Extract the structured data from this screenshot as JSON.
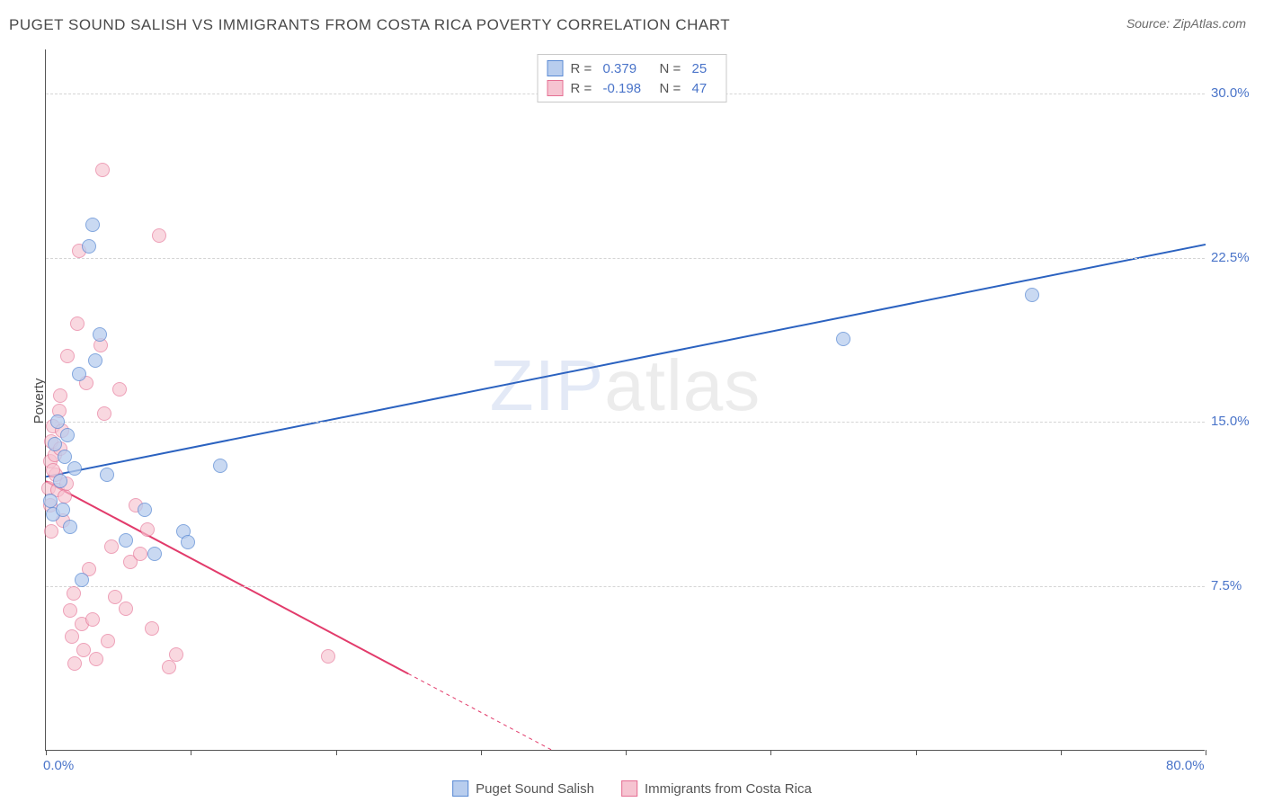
{
  "header": {
    "title": "PUGET SOUND SALISH VS IMMIGRANTS FROM COSTA RICA POVERTY CORRELATION CHART",
    "source": "Source: ZipAtlas.com"
  },
  "ylabel": "Poverty",
  "watermark": {
    "bold": "ZIP",
    "thin": "atlas"
  },
  "chart": {
    "type": "scatter-with-regression",
    "background_color": "#ffffff",
    "grid_color": "#d5d5d5",
    "x_range": [
      0,
      80
    ],
    "y_range": [
      0,
      32
    ],
    "x_ticks": [
      0,
      10,
      20,
      30,
      40,
      50,
      60,
      70,
      80
    ],
    "x_tick_labels": {
      "0": "0.0%",
      "80": "80.0%"
    },
    "y_grid": [
      7.5,
      15.0,
      22.5,
      30.0
    ],
    "y_grid_labels": [
      "7.5%",
      "15.0%",
      "22.5%",
      "30.0%"
    ],
    "marker_radius": 8,
    "marker_border_width": 1.2,
    "series_a": {
      "name": "Puget Sound Salish",
      "fill": "#b8cdee",
      "stroke": "#5a8ad4",
      "fill_opacity": 0.75,
      "line_color": "#2b62c0",
      "line_width": 2,
      "regression": {
        "x1": 0,
        "y1": 12.5,
        "x2": 80,
        "y2": 23.1,
        "dash_after_x": null
      },
      "R": "0.379",
      "N": "25",
      "points": [
        [
          0.3,
          11.4
        ],
        [
          0.5,
          10.8
        ],
        [
          0.6,
          14.0
        ],
        [
          0.8,
          15.0
        ],
        [
          1.0,
          12.3
        ],
        [
          1.2,
          11.0
        ],
        [
          1.3,
          13.4
        ],
        [
          1.5,
          14.4
        ],
        [
          1.7,
          10.2
        ],
        [
          2.0,
          12.9
        ],
        [
          2.3,
          17.2
        ],
        [
          2.5,
          7.8
        ],
        [
          3.0,
          23.0
        ],
        [
          3.2,
          24.0
        ],
        [
          3.4,
          17.8
        ],
        [
          3.7,
          19.0
        ],
        [
          4.2,
          12.6
        ],
        [
          5.5,
          9.6
        ],
        [
          6.8,
          11.0
        ],
        [
          7.5,
          9.0
        ],
        [
          9.5,
          10.0
        ],
        [
          9.8,
          9.5
        ],
        [
          12.0,
          13.0
        ],
        [
          55.0,
          18.8
        ],
        [
          68.0,
          20.8
        ]
      ]
    },
    "series_b": {
      "name": "Immigrants from Costa Rica",
      "fill": "#f6c4d1",
      "stroke": "#e56f93",
      "fill_opacity": 0.65,
      "line_color": "#e23b6b",
      "line_width": 2,
      "regression": {
        "x1": 0,
        "y1": 12.3,
        "x2": 35,
        "y2": 0,
        "dash_after_x": 25
      },
      "R": "-0.198",
      "N": "47",
      "points": [
        [
          0.2,
          12.0
        ],
        [
          0.3,
          13.2
        ],
        [
          0.4,
          14.1
        ],
        [
          0.5,
          14.8
        ],
        [
          0.6,
          13.5
        ],
        [
          0.7,
          12.6
        ],
        [
          0.8,
          11.9
        ],
        [
          0.9,
          15.5
        ],
        [
          1.0,
          16.2
        ],
        [
          1.1,
          14.6
        ],
        [
          1.2,
          10.5
        ],
        [
          1.3,
          11.6
        ],
        [
          1.5,
          18.0
        ],
        [
          1.7,
          6.4
        ],
        [
          1.8,
          5.2
        ],
        [
          1.9,
          7.2
        ],
        [
          2.0,
          4.0
        ],
        [
          2.2,
          19.5
        ],
        [
          2.3,
          22.8
        ],
        [
          2.5,
          5.8
        ],
        [
          2.6,
          4.6
        ],
        [
          2.8,
          16.8
        ],
        [
          3.0,
          8.3
        ],
        [
          3.2,
          6.0
        ],
        [
          3.5,
          4.2
        ],
        [
          3.8,
          18.5
        ],
        [
          3.9,
          26.5
        ],
        [
          4.0,
          15.4
        ],
        [
          4.3,
          5.0
        ],
        [
          4.5,
          9.3
        ],
        [
          4.8,
          7.0
        ],
        [
          5.1,
          16.5
        ],
        [
          5.5,
          6.5
        ],
        [
          5.8,
          8.6
        ],
        [
          6.2,
          11.2
        ],
        [
          6.5,
          9.0
        ],
        [
          7.0,
          10.1
        ],
        [
          7.3,
          5.6
        ],
        [
          7.8,
          23.5
        ],
        [
          8.5,
          3.8
        ],
        [
          9.0,
          4.4
        ],
        [
          0.4,
          10.0
        ],
        [
          0.5,
          12.8
        ],
        [
          0.3,
          11.2
        ],
        [
          1.0,
          13.8
        ],
        [
          1.4,
          12.2
        ],
        [
          19.5,
          4.3
        ]
      ]
    }
  },
  "legend_top_labels": {
    "r": "R =",
    "n": "N ="
  },
  "legend_bottom": {
    "a": "Puget Sound Salish",
    "b": "Immigrants from Costa Rica"
  }
}
